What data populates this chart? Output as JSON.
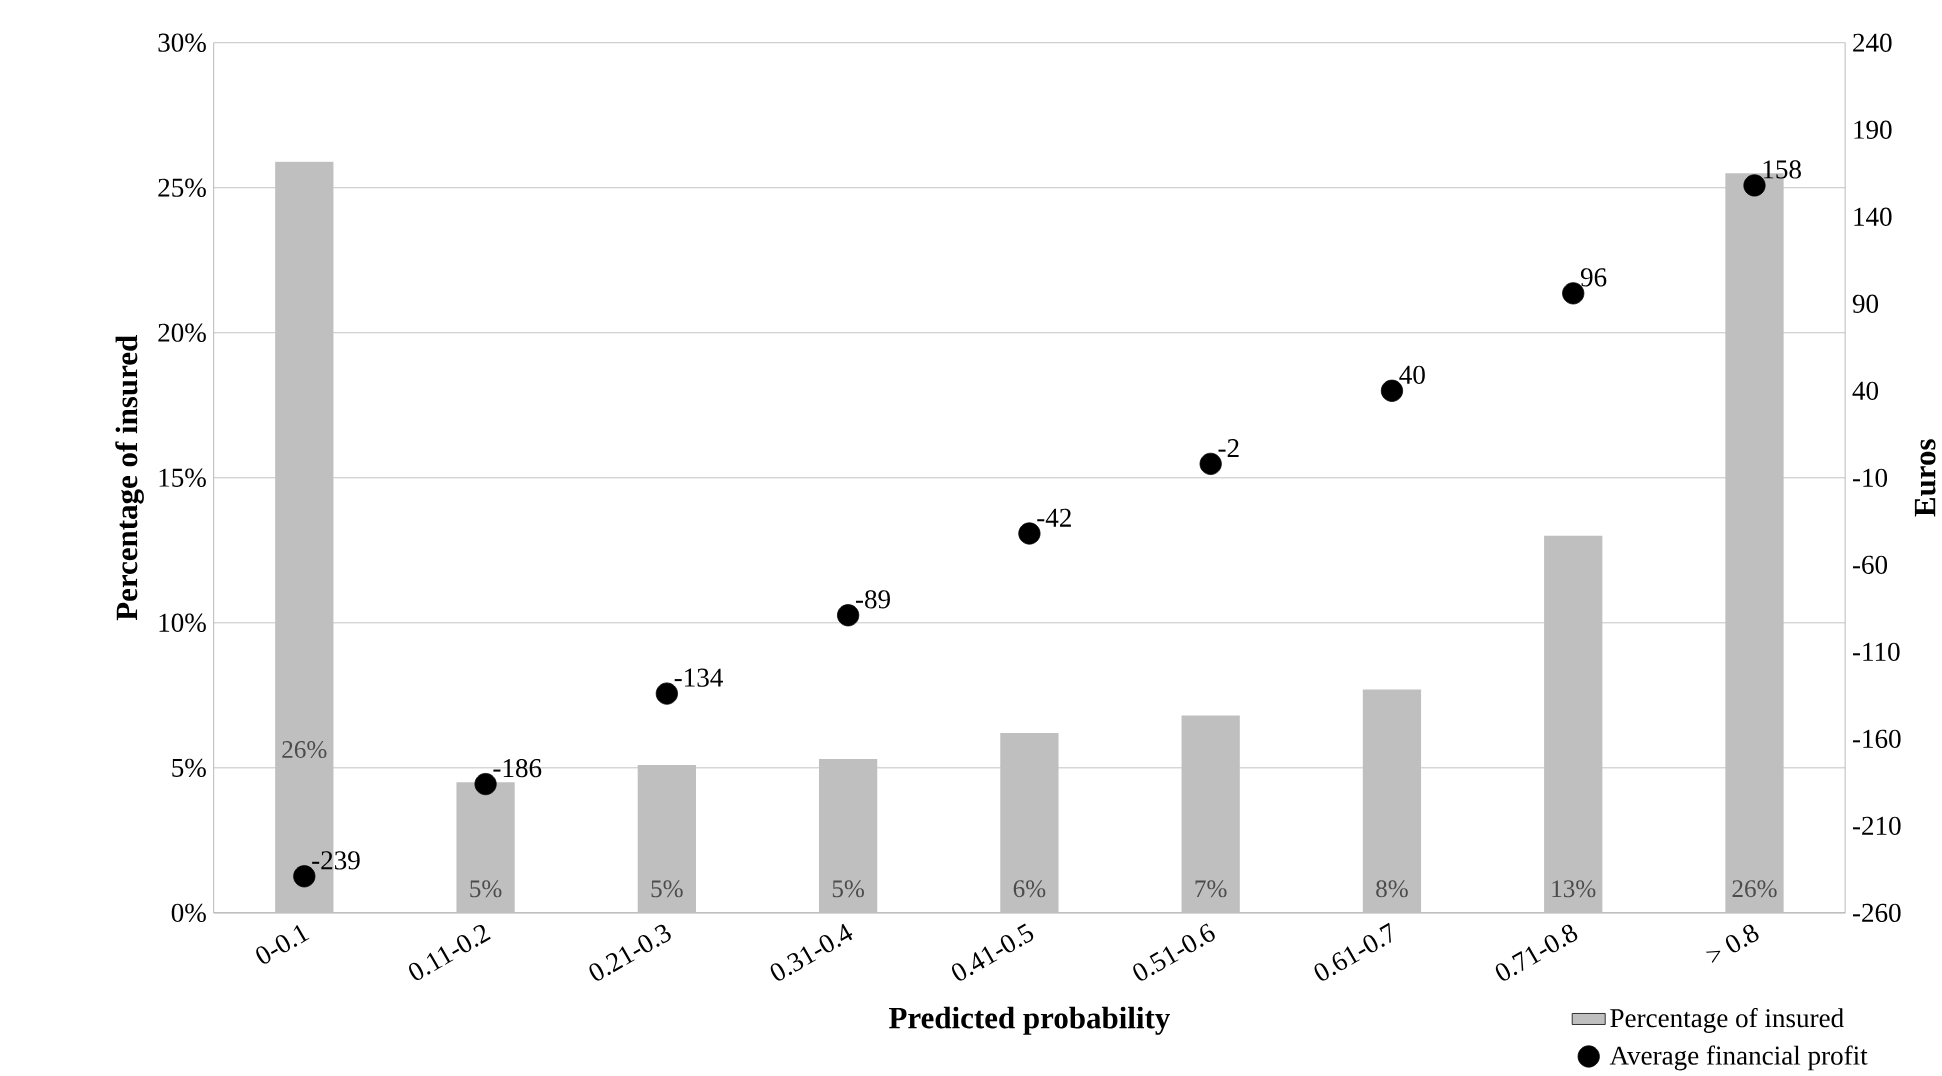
{
  "chart_data": {
    "type": "bar",
    "xlabel": "Predicted probability",
    "ylabel": "Percentage of insured",
    "y2label": "Euros",
    "categories": [
      "0-0.1",
      "0.11-0.2",
      "0.21-0.3",
      "0.31-0.4",
      "0.41-0.5",
      "0.51-0.6",
      "0.61-0.7",
      "0.71-0.8",
      "> 0.8"
    ],
    "series": [
      {
        "name": "Percentage of insured",
        "color": "#bfbfbf",
        "values": [
          25.9,
          4.5,
          5.1,
          5.3,
          6.2,
          6.8,
          7.7,
          13.0,
          25.5
        ],
        "value_labels": [
          "26%",
          "5%",
          "5%",
          "5%",
          "6%",
          "7%",
          "8%",
          "13%",
          "26%"
        ]
      },
      {
        "name": "Average financial profit",
        "type": "scatter",
        "axis": "y2",
        "color": "#000000",
        "values": [
          -239,
          -186,
          -134,
          -89,
          -42,
          -2,
          40,
          96,
          158
        ],
        "value_labels": [
          "-239",
          "-186",
          "-134",
          "-89",
          "-42",
          "-2",
          "40",
          "96",
          "158"
        ]
      }
    ],
    "ylim": [
      0,
      30
    ],
    "yticks": [
      {
        "value": 0,
        "label": "0%"
      },
      {
        "value": 5,
        "label": "5%"
      },
      {
        "value": 10,
        "label": "10%"
      },
      {
        "value": 15,
        "label": "15%"
      },
      {
        "value": 20,
        "label": "20%"
      },
      {
        "value": 25,
        "label": "25%"
      },
      {
        "value": 30,
        "label": "30%"
      }
    ],
    "y2lim": [
      -260,
      240
    ],
    "y2ticks": [
      -260,
      -210,
      -160,
      -110,
      -60,
      -10,
      40,
      90,
      140,
      190,
      240
    ],
    "grid": "y",
    "legend": "bottom right",
    "marker": "circle"
  }
}
